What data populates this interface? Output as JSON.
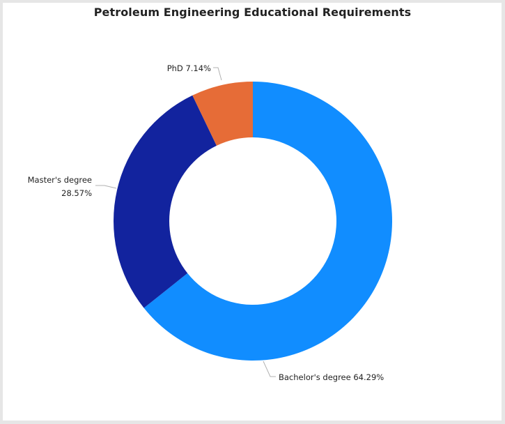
{
  "chart_data": {
    "type": "pie",
    "donut": true,
    "title": "Petroleum Engineering Educational Requirements",
    "slices": [
      {
        "label": "Bachelor's degree",
        "value": 64.29,
        "display": "64.29%",
        "color": "#118dff"
      },
      {
        "label": "Master's degree",
        "value": 28.57,
        "display": "28.57%",
        "color": "#12239e"
      },
      {
        "label": "PhD",
        "value": 7.14,
        "display": "7.14%",
        "color": "#e66c37"
      }
    ],
    "legend": "none",
    "start": "top",
    "direction": "clockwise"
  }
}
